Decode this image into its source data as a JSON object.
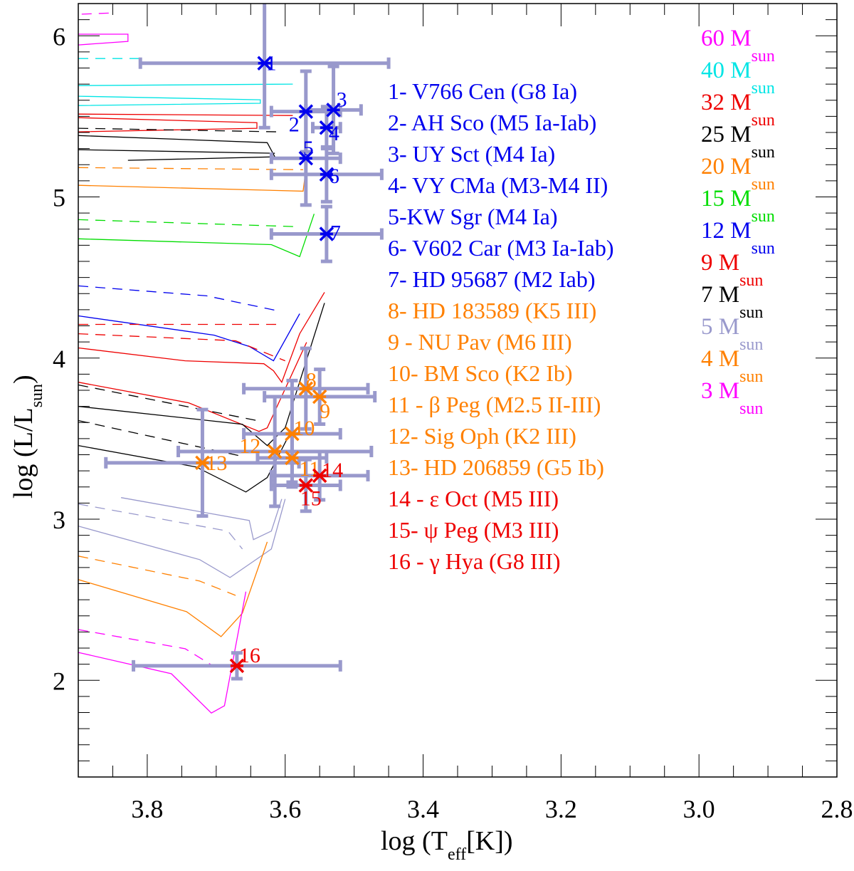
{
  "chart_data": {
    "type": "line",
    "xlabel": {
      "main": "log (T",
      "sub": "eff",
      "tail": "[K])"
    },
    "ylabel": {
      "main": "log (L/L",
      "sub": "sun",
      "tail": ")"
    },
    "xlim": [
      3.9,
      2.8
    ],
    "ylim": [
      1.4,
      6.2
    ],
    "x_reversed": true,
    "grid": false,
    "x_ticks": [
      "3.8",
      "3.6",
      "3.4",
      "3.2",
      "3.0",
      "2.8"
    ],
    "y_ticks": [
      "2",
      "3",
      "4",
      "5",
      "6"
    ],
    "errorbar_color": "#9999cc",
    "stars": [
      {
        "id": "1",
        "legend": "1- V766 Cen (G8 Ia)",
        "x": 3.63,
        "y": 5.83,
        "xerr": 0.18,
        "yerr": 0.4,
        "color": "#0000ee"
      },
      {
        "id": "2",
        "legend": "2- AH Sco (M5 Ia-Iab)",
        "x": 3.57,
        "y": 5.53,
        "xerr": 0.05,
        "yerr": 0.25,
        "color": "#0000ee"
      },
      {
        "id": "3",
        "legend": "3- UY Sct (M4 Ia)",
        "x": 3.53,
        "y": 5.54,
        "xerr": 0.04,
        "yerr": 0.27,
        "color": "#0000ee"
      },
      {
        "id": "4",
        "legend": "4- VY CMa (M3-M4 II)",
        "x": 3.54,
        "y": 5.43,
        "xerr": 0.02,
        "yerr": 0.13,
        "color": "#0000ee"
      },
      {
        "id": "5",
        "legend": "5-KW Sgr (M4 Ia)",
        "x": 3.57,
        "y": 5.24,
        "xerr": 0.05,
        "yerr": 0.29,
        "color": "#0000ee"
      },
      {
        "id": "6",
        "legend": "6- V602 Car (M3 Ia-Iab)",
        "x": 3.54,
        "y": 5.14,
        "xerr": 0.08,
        "yerr": 0.17,
        "color": "#0000ee"
      },
      {
        "id": "7",
        "legend": "7- HD 95687 (M2 Iab)",
        "x": 3.54,
        "y": 4.77,
        "xerr": 0.08,
        "yerr": 0.17,
        "color": "#0000ee"
      },
      {
        "id": "8",
        "legend": "8- HD 183589 (K5 III)",
        "x": 3.57,
        "y": 3.81,
        "xerr": 0.09,
        "yerr": 0.25,
        "color": "#ff8000"
      },
      {
        "id": "9",
        "legend": "9 - NU Pav (M6 III)",
        "x": 3.55,
        "y": 3.76,
        "xerr": 0.08,
        "yerr": 0.17,
        "color": "#ff8000"
      },
      {
        "id": "10",
        "legend": "10- BM Sco (K2 Ib)",
        "x": 3.59,
        "y": 3.53,
        "xerr": 0.07,
        "yerr": 0.33,
        "color": "#ff8000"
      },
      {
        "id": "11",
        "legend": "11 - β Peg (M2.5 II-III)",
        "x": 3.59,
        "y": 3.38,
        "xerr": 0.05,
        "yerr": 0.15,
        "color": "#ff8000"
      },
      {
        "id": "12",
        "legend": "12- Sig Oph (K2 III)",
        "x": 3.615,
        "y": 3.42,
        "xerr": 0.14,
        "yerr": 0.34,
        "color": "#ff8000"
      },
      {
        "id": "13",
        "legend": "13- HD 206859 (G5 Ib)",
        "x": 3.72,
        "y": 3.35,
        "xerr": 0.14,
        "yerr": 0.33,
        "color": "#ff8000"
      },
      {
        "id": "14",
        "legend": "14 - ε Oct (M5 III)",
        "x": 3.55,
        "y": 3.27,
        "xerr": 0.07,
        "yerr": 0.15,
        "color": "#ee0000"
      },
      {
        "id": "15",
        "legend": "15- ψ Peg (M3 III)",
        "x": 3.57,
        "y": 3.21,
        "xerr": 0.05,
        "yerr": 0.16,
        "color": "#ee0000"
      },
      {
        "id": "16",
        "legend": "16 - γ Hya (G8 III)",
        "x": 3.67,
        "y": 2.09,
        "xerr": 0.15,
        "yerr": 0.08,
        "color": "#ee0000"
      }
    ],
    "mass_legend": [
      {
        "label": "60 M",
        "sub": "sun",
        "color": "#ff00ff"
      },
      {
        "label": "40 M",
        "sub": "sun",
        "color": "#00e5e5"
      },
      {
        "label": "32 M",
        "sub": "sun",
        "color": "#ee0000"
      },
      {
        "label": "25 M",
        "sub": "sun",
        "color": "#000000"
      },
      {
        "label": "20 M",
        "sub": "sun",
        "color": "#ff8000"
      },
      {
        "label": "15 M",
        "sub": "sun",
        "color": "#00dd00"
      },
      {
        "label": "12 M",
        "sub": "sun",
        "color": "#0000ee"
      },
      {
        "label": "9 M",
        "sub": "sun",
        "color": "#ee0000"
      },
      {
        "label": "7 M",
        "sub": "sun",
        "color": "#000000"
      },
      {
        "label": "5 M",
        "sub": "sun",
        "color": "#9999cc"
      },
      {
        "label": "4 M",
        "sub": "sun",
        "color": "#ff8000"
      },
      {
        "label": "3 M",
        "sub": "sun",
        "color": "#ff00ff"
      }
    ],
    "tracks": [
      {
        "mass": "60",
        "style": "solid",
        "color": "#ff00ff",
        "points": [
          [
            3.9,
            6.01
          ],
          [
            3.828,
            6.01
          ],
          [
            3.828,
            5.965
          ],
          [
            3.9,
            5.943
          ]
        ]
      },
      {
        "mass": "60",
        "style": "dashed",
        "color": "#ff00ff",
        "points": [
          [
            3.895,
            6.134
          ],
          [
            3.848,
            6.142
          ]
        ]
      },
      {
        "mass": "40",
        "style": "solid",
        "color": "#00e5e5",
        "points": [
          [
            3.9,
            5.691
          ],
          [
            3.589,
            5.7
          ]
        ]
      },
      {
        "mass": "40",
        "style": "solid",
        "color": "#00e5e5",
        "points": [
          [
            3.9,
            5.625
          ],
          [
            3.636,
            5.603
          ],
          [
            3.636,
            5.581
          ],
          [
            3.9,
            5.567
          ]
        ]
      },
      {
        "mass": "40",
        "style": "dashed",
        "color": "#00e5e5",
        "points": [
          [
            3.9,
            5.859
          ],
          [
            3.807,
            5.859
          ]
        ]
      },
      {
        "mass": "32",
        "style": "solid",
        "color": "#ee0000",
        "points": [
          [
            3.9,
            5.514
          ],
          [
            3.589,
            5.505
          ]
        ]
      },
      {
        "mass": "32",
        "style": "solid",
        "color": "#ee0000",
        "points": [
          [
            3.9,
            5.492
          ],
          [
            3.641,
            5.461
          ],
          [
            3.641,
            5.426
          ],
          [
            3.9,
            5.404
          ]
        ]
      },
      {
        "mass": "25",
        "style": "solid",
        "color": "#000000",
        "points": [
          [
            3.9,
            5.381
          ],
          [
            3.626,
            5.337
          ],
          [
            3.615,
            5.249
          ],
          [
            3.828,
            5.227
          ]
        ]
      },
      {
        "mass": "25",
        "style": "solid",
        "color": "#000000",
        "points": [
          [
            3.9,
            5.293
          ],
          [
            3.615,
            5.271
          ]
        ]
      },
      {
        "mass": "25",
        "style": "dashed",
        "color": "#000000",
        "points": [
          [
            3.9,
            5.426
          ],
          [
            3.61,
            5.404
          ]
        ]
      },
      {
        "mass": "20",
        "style": "solid",
        "color": "#ff8000",
        "points": [
          [
            3.9,
            5.072
          ],
          [
            3.574,
            5.036
          ],
          [
            3.569,
            5.204
          ]
        ]
      },
      {
        "mass": "20",
        "style": "dashed",
        "color": "#ff8000",
        "points": [
          [
            3.9,
            5.182
          ],
          [
            3.574,
            5.169
          ]
        ]
      },
      {
        "mass": "15",
        "style": "solid",
        "color": "#00dd00",
        "points": [
          [
            3.9,
            4.74
          ],
          [
            3.62,
            4.704
          ],
          [
            3.579,
            4.629
          ],
          [
            3.558,
            4.895
          ]
        ]
      },
      {
        "mass": "15",
        "style": "dashed",
        "color": "#00dd00",
        "points": [
          [
            3.9,
            4.859
          ],
          [
            3.579,
            4.815
          ]
        ]
      },
      {
        "mass": "12",
        "style": "solid",
        "color": "#0000ee",
        "points": [
          [
            3.9,
            4.262
          ],
          [
            3.703,
            4.142
          ],
          [
            3.652,
            4.072
          ],
          [
            3.617,
            3.983
          ],
          [
            3.579,
            4.275
          ]
        ]
      },
      {
        "mass": "12",
        "style": "dashed",
        "color": "#0000ee",
        "points": [
          [
            3.9,
            4.448
          ],
          [
            3.714,
            4.386
          ],
          [
            3.61,
            4.293
          ]
        ]
      },
      {
        "mass": "9",
        "style": "solid",
        "color": "#ee0000",
        "points": [
          [
            3.9,
            4.063
          ],
          [
            3.745,
            3.983
          ],
          [
            3.631,
            3.965
          ],
          [
            3.617,
            3.921
          ],
          [
            3.605,
            3.85
          ],
          [
            3.579,
            4.151
          ],
          [
            3.543,
            4.408
          ]
        ]
      },
      {
        "mass": "9",
        "style": "solid",
        "color": "#ee0000",
        "points": [
          [
            3.9,
            3.85
          ],
          [
            3.74,
            3.722
          ],
          [
            3.638,
            3.545
          ],
          [
            3.626,
            3.567
          ],
          [
            3.569,
            4.098
          ]
        ]
      },
      {
        "mass": "9",
        "style": "dashed",
        "color": "#ee0000",
        "points": [
          [
            3.9,
            4.209
          ],
          [
            3.61,
            4.209
          ]
        ]
      },
      {
        "mass": "9",
        "style": "dashed",
        "color": "#ee0000",
        "points": [
          [
            3.9,
            4.151
          ],
          [
            3.672,
            4.107
          ],
          [
            3.6,
            3.983
          ]
        ]
      },
      {
        "mass": "7",
        "style": "solid",
        "color": "#000000",
        "points": [
          [
            3.9,
            3.7
          ],
          [
            3.662,
            3.589
          ],
          [
            3.626,
            3.457
          ],
          [
            3.6,
            3.567
          ],
          [
            3.543,
            4.342
          ]
        ]
      },
      {
        "mass": "7",
        "style": "solid",
        "color": "#000000",
        "points": [
          [
            3.9,
            3.457
          ],
          [
            3.729,
            3.324
          ],
          [
            3.657,
            3.169
          ],
          [
            3.626,
            3.258
          ],
          [
            3.589,
            3.567
          ]
        ]
      },
      {
        "mass": "7",
        "style": "dashed",
        "color": "#000000",
        "points": [
          [
            3.9,
            3.833
          ],
          [
            3.641,
            3.612
          ]
        ]
      },
      {
        "mass": "7",
        "style": "dashed",
        "color": "#000000",
        "points": [
          [
            3.9,
            3.612
          ],
          [
            3.662,
            3.39
          ]
        ]
      },
      {
        "mass": "5",
        "style": "solid",
        "color": "#9999cc",
        "points": [
          [
            3.838,
            3.134
          ],
          [
            3.652,
            2.992
          ],
          [
            3.646,
            2.873
          ],
          [
            3.62,
            2.926
          ],
          [
            3.605,
            3.125
          ]
        ]
      },
      {
        "mass": "5",
        "style": "solid",
        "color": "#9999cc",
        "points": [
          [
            3.9,
            2.957
          ],
          [
            3.724,
            2.749
          ],
          [
            3.68,
            2.638
          ],
          [
            3.62,
            2.815
          ],
          [
            3.6,
            3.125
          ]
        ]
      },
      {
        "mass": "5",
        "style": "dashed",
        "color": "#9999cc",
        "points": [
          [
            3.9,
            3.094
          ],
          [
            3.683,
            2.926
          ],
          [
            3.662,
            2.815
          ]
        ]
      },
      {
        "mass": "4",
        "style": "solid",
        "color": "#ff8000",
        "points": [
          [
            3.9,
            2.625
          ],
          [
            3.743,
            2.426
          ],
          [
            3.693,
            2.271
          ],
          [
            3.662,
            2.417
          ],
          [
            3.626,
            2.859
          ]
        ]
      },
      {
        "mass": "4",
        "style": "dashed",
        "color": "#ff8000",
        "points": [
          [
            3.9,
            2.771
          ],
          [
            3.724,
            2.616
          ],
          [
            3.672,
            2.527
          ]
        ]
      },
      {
        "mass": "3",
        "style": "solid",
        "color": "#ff00ff",
        "points": [
          [
            3.9,
            2.173
          ],
          [
            3.765,
            2.041
          ],
          [
            3.707,
            1.797
          ],
          [
            3.688,
            1.842
          ],
          [
            3.657,
            2.55
          ]
        ]
      },
      {
        "mass": "3",
        "style": "dashed",
        "color": "#ff00ff",
        "points": [
          [
            3.9,
            2.315
          ],
          [
            3.745,
            2.196
          ],
          [
            3.703,
            2.085
          ]
        ]
      }
    ]
  }
}
